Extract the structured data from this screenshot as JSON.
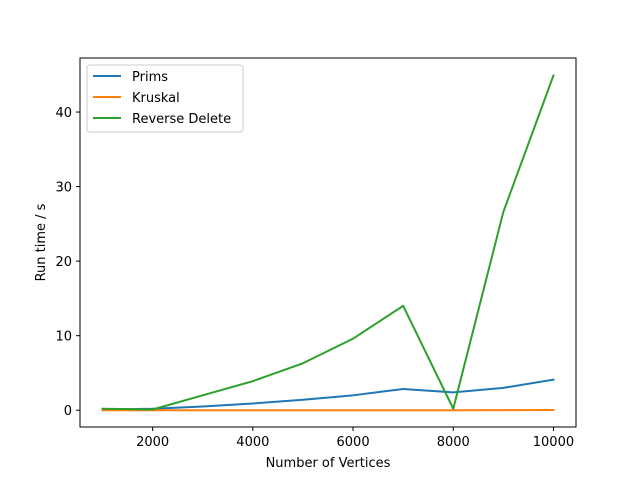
{
  "chart_data": {
    "type": "line",
    "title": "",
    "xlabel": "Number of Vertices",
    "ylabel": "Run time / s",
    "xlim": [
      550,
      10450
    ],
    "ylim": [
      -2.25,
      47.25
    ],
    "xticks": [
      2000,
      4000,
      6000,
      8000,
      10000
    ],
    "yticks": [
      0,
      10,
      20,
      30,
      40
    ],
    "grid": false,
    "legend_position": "top-left",
    "x": [
      1000,
      2000,
      3000,
      4000,
      5000,
      6000,
      7000,
      8000,
      9000,
      10000
    ],
    "series": [
      {
        "name": "Prims",
        "color": "#1f77b4",
        "values": [
          0.1,
          0.2,
          0.5,
          0.9,
          1.4,
          2.0,
          2.85,
          2.4,
          3.0,
          4.1
        ]
      },
      {
        "name": "Kruskal",
        "color": "#ff7f0e",
        "values": [
          0.0,
          0.0,
          0.0,
          0.0,
          0.0,
          0.0,
          0.0,
          0.0,
          0.02,
          0.03
        ]
      },
      {
        "name": "Reverse Delete",
        "color": "#2ca02c",
        "values": [
          0.2,
          0.1,
          2.0,
          3.9,
          6.3,
          9.6,
          14.0,
          0.2,
          26.6,
          44.9
        ]
      }
    ]
  }
}
